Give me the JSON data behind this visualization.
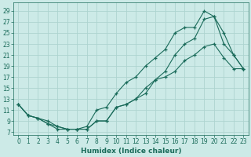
{
  "title": "",
  "xlabel": "Humidex (Indice chaleur)",
  "bg_color": "#cceae7",
  "grid_color": "#add4d0",
  "line_color": "#1a6b5a",
  "xlim": [
    -0.5,
    23.5
  ],
  "ylim": [
    6.5,
    30.5
  ],
  "xticks": [
    0,
    1,
    2,
    3,
    4,
    5,
    6,
    7,
    8,
    9,
    10,
    11,
    12,
    13,
    14,
    15,
    16,
    17,
    18,
    19,
    20,
    21,
    22,
    23
  ],
  "yticks": [
    7,
    9,
    11,
    13,
    15,
    17,
    19,
    21,
    23,
    25,
    27,
    29
  ],
  "line1_x": [
    0,
    1,
    2,
    3,
    4,
    5,
    6,
    7,
    8,
    9,
    10,
    11,
    12,
    13,
    14,
    15,
    16,
    17,
    18,
    19,
    20,
    21,
    22,
    23
  ],
  "line1_y": [
    12,
    10,
    9.5,
    8.5,
    7.5,
    7.5,
    7.5,
    7.5,
    9,
    9,
    11.5,
    12,
    13,
    15,
    16.5,
    17,
    18,
    20,
    21,
    22.5,
    23,
    20.5,
    18.5,
    18.5
  ],
  "line2_x": [
    0,
    1,
    2,
    3,
    4,
    5,
    6,
    7,
    8,
    9,
    10,
    11,
    12,
    13,
    14,
    15,
    16,
    17,
    18,
    19,
    20,
    21,
    22,
    23
  ],
  "line2_y": [
    12,
    10,
    9.5,
    9,
    8,
    7.5,
    7.5,
    8,
    11,
    11.5,
    14,
    16,
    17,
    19,
    20.5,
    22,
    25,
    26,
    26,
    29,
    28,
    23,
    21,
    18.5
  ],
  "line3_x": [
    0,
    1,
    2,
    3,
    4,
    5,
    6,
    7,
    8,
    9,
    10,
    11,
    12,
    13,
    14,
    15,
    16,
    17,
    18,
    19,
    20,
    21,
    22,
    23
  ],
  "line3_y": [
    12,
    10,
    9.5,
    8.5,
    8,
    7.5,
    7.5,
    7.5,
    9,
    9,
    11.5,
    12,
    13,
    14,
    16.5,
    18,
    21,
    23,
    24,
    27.5,
    28,
    25,
    21,
    18.5
  ],
  "tick_fontsize": 5.5,
  "xlabel_fontsize": 6.5,
  "tick_color": "#1a6b5a"
}
